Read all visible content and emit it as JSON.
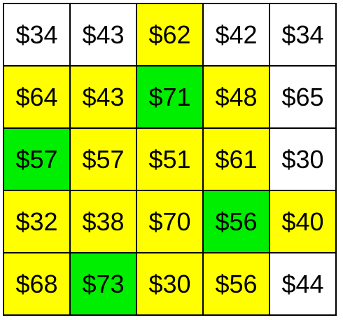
{
  "colors": {
    "white": "#ffffff",
    "yellow": "#ffff00",
    "green": "#00ee00",
    "border": "#000000"
  },
  "grid": {
    "rows": [
      [
        {
          "label": "$34",
          "value": 34,
          "color": "white"
        },
        {
          "label": "$43",
          "value": 43,
          "color": "white"
        },
        {
          "label": "$62",
          "value": 62,
          "color": "yellow"
        },
        {
          "label": "$42",
          "value": 42,
          "color": "white"
        },
        {
          "label": "$34",
          "value": 34,
          "color": "white"
        }
      ],
      [
        {
          "label": "$64",
          "value": 64,
          "color": "yellow"
        },
        {
          "label": "$43",
          "value": 43,
          "color": "yellow"
        },
        {
          "label": "$71",
          "value": 71,
          "color": "green"
        },
        {
          "label": "$48",
          "value": 48,
          "color": "yellow"
        },
        {
          "label": "$65",
          "value": 65,
          "color": "white"
        }
      ],
      [
        {
          "label": "$57",
          "value": 57,
          "color": "green"
        },
        {
          "label": "$57",
          "value": 57,
          "color": "yellow"
        },
        {
          "label": "$51",
          "value": 51,
          "color": "yellow"
        },
        {
          "label": "$61",
          "value": 61,
          "color": "yellow"
        },
        {
          "label": "$30",
          "value": 30,
          "color": "white"
        }
      ],
      [
        {
          "label": "$32",
          "value": 32,
          "color": "yellow"
        },
        {
          "label": "$38",
          "value": 38,
          "color": "yellow"
        },
        {
          "label": "$70",
          "value": 70,
          "color": "yellow"
        },
        {
          "label": "$56",
          "value": 56,
          "color": "green"
        },
        {
          "label": "$40",
          "value": 40,
          "color": "yellow"
        }
      ],
      [
        {
          "label": "$68",
          "value": 68,
          "color": "yellow"
        },
        {
          "label": "$73",
          "value": 73,
          "color": "green"
        },
        {
          "label": "$30",
          "value": 30,
          "color": "yellow"
        },
        {
          "label": "$56",
          "value": 56,
          "color": "yellow"
        },
        {
          "label": "$44",
          "value": 44,
          "color": "white"
        }
      ]
    ]
  }
}
